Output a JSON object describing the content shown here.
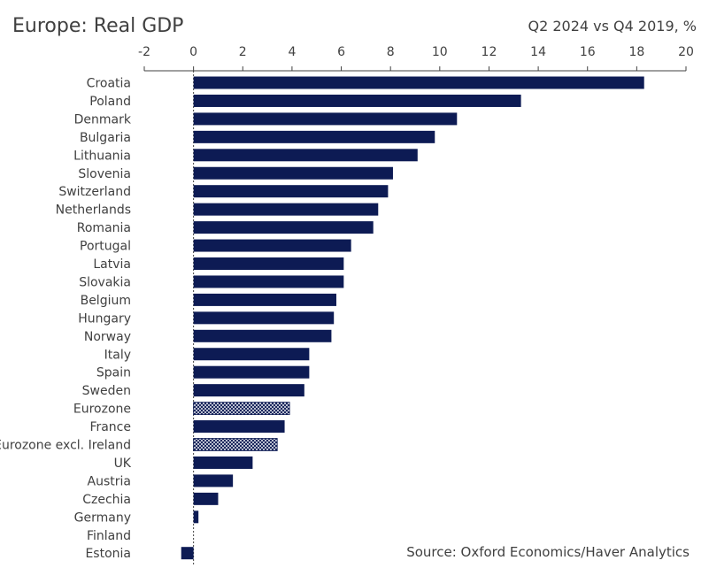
{
  "title": "Europe: Real GDP",
  "subtitle": "Q2 2024 vs Q4 2019, %",
  "source": "Source: Oxford Economics/Haver Analytics",
  "colors": {
    "bar": "#0d1b54",
    "axis": "#404040"
  },
  "chart_data": {
    "type": "bar",
    "orientation": "horizontal",
    "title": "Europe: Real GDP",
    "subtitle": "Q2 2024 vs Q4 2019, %",
    "categories": [
      "Croatia",
      "Poland",
      "Denmark",
      "Bulgaria",
      "Lithuania",
      "Slovenia",
      "Switzerland",
      "Netherlands",
      "Romania",
      "Portugal",
      "Latvia",
      "Slovakia",
      "Belgium",
      "Hungary",
      "Norway",
      "Italy",
      "Spain",
      "Sweden",
      "Eurozone",
      "France",
      "Eurozone excl. Ireland",
      "UK",
      "Austria",
      "Czechia",
      "Germany",
      "Finland",
      "Estonia"
    ],
    "values": [
      18.3,
      13.3,
      10.7,
      9.8,
      9.1,
      8.1,
      7.9,
      7.5,
      7.3,
      6.4,
      6.1,
      6.1,
      5.8,
      5.7,
      5.6,
      4.7,
      4.7,
      4.5,
      3.9,
      3.7,
      3.4,
      2.4,
      1.6,
      1.0,
      0.2,
      0.0,
      -0.5
    ],
    "hatched_categories": [
      "Eurozone",
      "Eurozone excl. Ireland"
    ],
    "xlim": [
      -2,
      20
    ],
    "xticks": [
      -2,
      0,
      2,
      4,
      6,
      8,
      10,
      12,
      14,
      16,
      18,
      20
    ],
    "axis_position": "top",
    "grid": false
  }
}
